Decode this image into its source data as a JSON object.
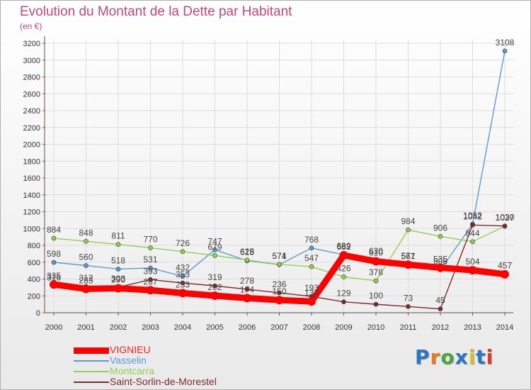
{
  "title": "Evolution du Montant de la Dette par Habitant",
  "subtitle": "(en €)",
  "logo": {
    "text": "Proxiti",
    "colors": [
      "#2a78c4",
      "#e87b1e",
      "#4aa83a",
      "#2a78c4",
      "#d8c426",
      "#2a78c4",
      "#e23a2a"
    ]
  },
  "chart_data": {
    "type": "line",
    "title": "Evolution du Montant de la Dette par Habitant",
    "ylabel": "(en €)",
    "xlabel": "",
    "x": [
      "2000",
      "2001",
      "2002",
      "2003",
      "2004",
      "2005",
      "2006",
      "2007",
      "2008",
      "2009",
      "2010",
      "2011",
      "2012",
      "2013",
      "2014"
    ],
    "ylim": [
      0,
      3200
    ],
    "yticks": [
      "0",
      "200",
      "400",
      "600",
      "800",
      "1000",
      "1200",
      "1400",
      "1600",
      "1800",
      "2000",
      "2200",
      "2400",
      "2600",
      "2800",
      "3000",
      "3200"
    ],
    "grid": true,
    "legend": "bottom-left",
    "series": [
      {
        "name": "VIGNIEU",
        "color": "#ff0000",
        "values": [
          335,
          283,
          290,
          267,
          233,
          202,
          174,
          150,
          134,
          682,
          610,
          571,
          535,
          504,
          457
        ]
      },
      {
        "name": "Vasselin",
        "color": "#5b9bd5",
        "values": [
          598,
          560,
          518,
          531,
          432,
          747,
          618,
          571,
          768,
          689,
          630,
          567,
          508,
          1052,
          3108
        ]
      },
      {
        "name": "Montcarra",
        "color": "#92d050",
        "values": [
          884,
          848,
          811,
          770,
          726,
          679,
          625,
          574,
          547,
          426,
          378,
          984,
          906,
          844,
          1027
        ]
      },
      {
        "name": "Saint-Sorlin-de-Morestel",
        "color": "#7f2b2b",
        "values": [
          316,
          312,
          303,
          393,
          353,
          319,
          278,
          236,
          193,
          129,
          100,
          73,
          45,
          1042,
          1030
        ]
      }
    ]
  }
}
